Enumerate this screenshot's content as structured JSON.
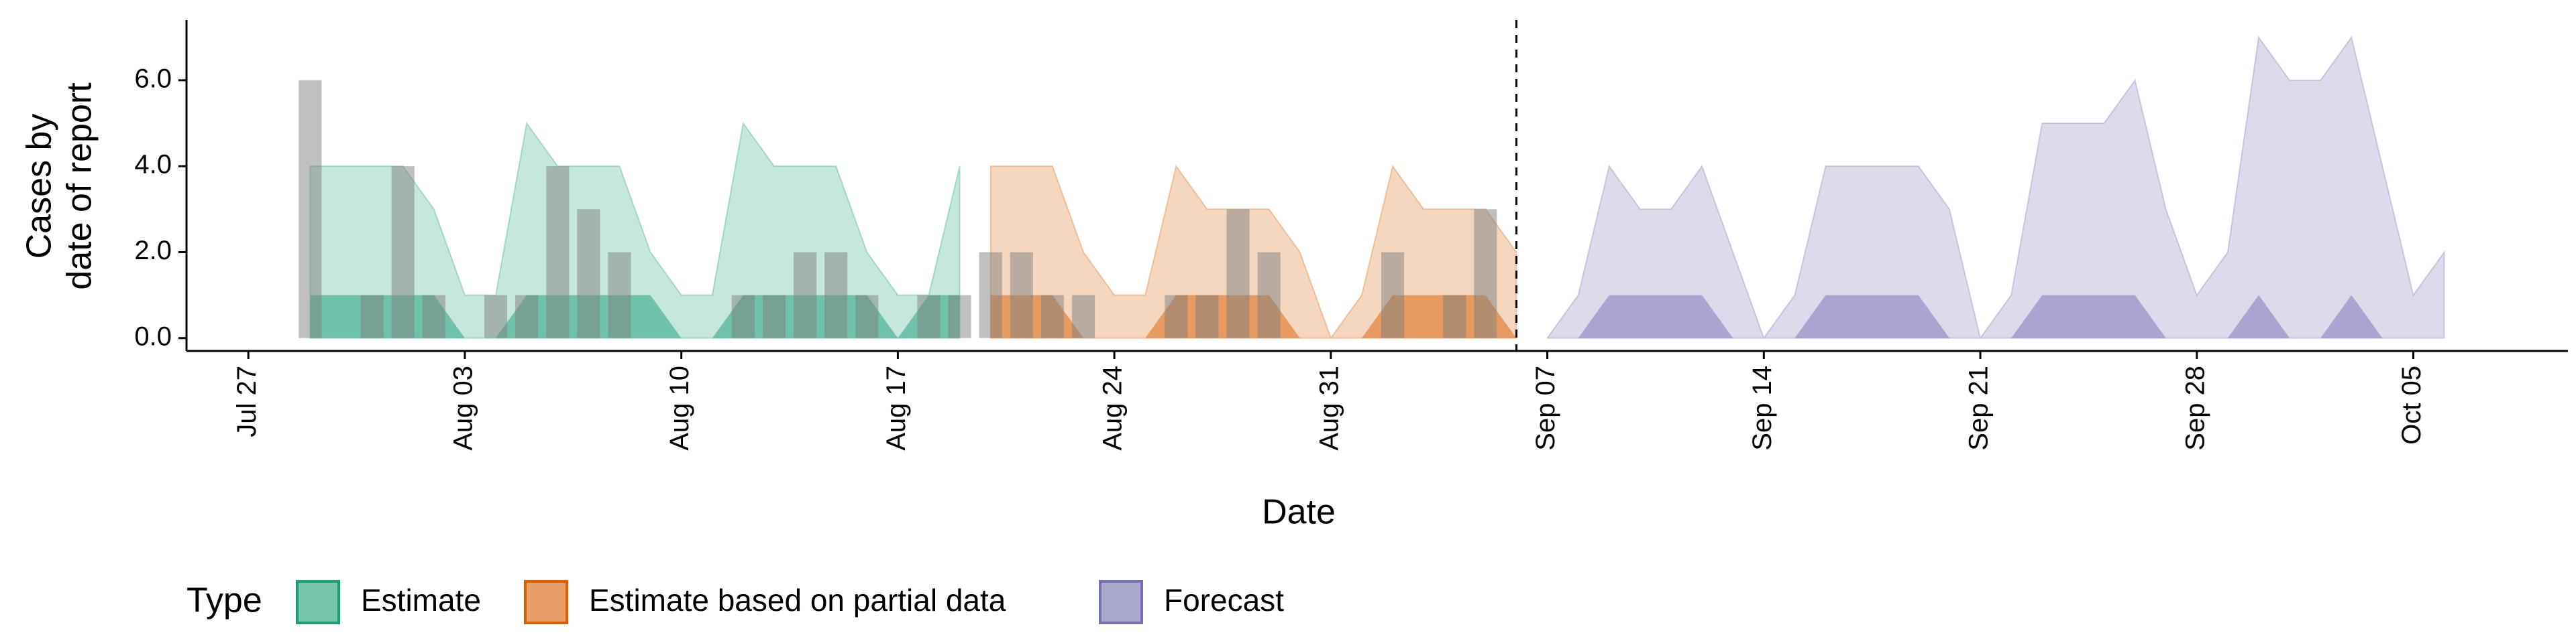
{
  "chart_data": {
    "type": "area",
    "xlabel": "Date",
    "ylabel": [
      "Cases by",
      "date of report"
    ],
    "legend_title": "Type",
    "xlim": [
      "Jul 25",
      "Oct 10"
    ],
    "xticks": [
      "Jul 27",
      "Aug 03",
      "Aug 10",
      "Aug 17",
      "Aug 24",
      "Aug 31",
      "Sep 07",
      "Sep 14",
      "Sep 21",
      "Sep 28",
      "Oct 05"
    ],
    "ylim": [
      -0.3,
      7.4
    ],
    "yticks": [
      {
        "value": 0,
        "label": "0.0"
      },
      {
        "value": 2,
        "label": "2.0"
      },
      {
        "value": 4,
        "label": "4.0"
      },
      {
        "value": 6,
        "label": "6.0"
      }
    ],
    "vline": "Sep 06",
    "x": [
      "Jul 29",
      "Jul 30",
      "Jul 31",
      "Aug 01",
      "Aug 02",
      "Aug 03",
      "Aug 04",
      "Aug 05",
      "Aug 06",
      "Aug 07",
      "Aug 08",
      "Aug 09",
      "Aug 10",
      "Aug 11",
      "Aug 12",
      "Aug 13",
      "Aug 14",
      "Aug 15",
      "Aug 16",
      "Aug 17",
      "Aug 18",
      "Aug 19",
      "Aug 20",
      "Aug 21",
      "Aug 22",
      "Aug 23",
      "Aug 24",
      "Aug 25",
      "Aug 26",
      "Aug 27",
      "Aug 28",
      "Aug 29",
      "Aug 30",
      "Aug 31",
      "Sep 01",
      "Sep 02",
      "Sep 03",
      "Sep 04",
      "Sep 05",
      "Sep 06",
      "Sep 07",
      "Sep 08",
      "Sep 09",
      "Sep 10",
      "Sep 11",
      "Sep 12",
      "Sep 13",
      "Sep 14",
      "Sep 15",
      "Sep 16",
      "Sep 17",
      "Sep 18",
      "Sep 19",
      "Sep 20",
      "Sep 21",
      "Sep 22",
      "Sep 23",
      "Sep 24",
      "Sep 25",
      "Sep 26",
      "Sep 27",
      "Sep 28",
      "Sep 29",
      "Sep 30",
      "Oct 01",
      "Oct 02",
      "Oct 03",
      "Oct 04",
      "Oct 05",
      "Oct 06"
    ],
    "bar_color": "#808080",
    "bars": [
      6,
      0,
      1,
      4,
      1,
      0,
      1,
      1,
      4,
      3,
      2,
      0,
      0,
      0,
      1,
      1,
      2,
      2,
      1,
      0,
      1,
      1,
      2,
      2,
      1,
      1,
      0,
      0,
      1,
      1,
      3,
      2,
      0,
      0,
      0,
      2,
      0,
      1,
      3,
      0,
      null,
      null,
      null,
      null,
      null,
      null,
      null,
      null,
      null,
      null,
      null,
      null,
      null,
      null,
      null,
      null,
      null,
      null,
      null,
      null,
      null,
      null,
      null,
      null,
      null,
      null,
      null,
      null,
      null,
      null
    ],
    "series": [
      {
        "name": "Estimate",
        "color": "#1b9e77",
        "values": [
          4,
          4,
          4,
          4,
          3,
          1,
          1,
          5,
          4,
          4,
          4,
          2,
          1,
          1,
          5,
          4,
          4,
          4,
          2,
          1,
          1,
          4,
          null,
          null,
          null,
          null,
          null,
          null,
          null,
          null,
          null,
          null,
          null,
          null,
          null,
          null,
          null,
          null,
          null,
          null,
          null,
          null,
          null,
          null,
          null,
          null,
          null,
          null,
          null,
          null,
          null,
          null,
          null,
          null,
          null,
          null,
          null,
          null,
          null,
          null,
          null,
          null,
          null,
          null,
          null,
          null,
          null,
          null,
          null,
          null
        ],
        "values_50": [
          1,
          1,
          1,
          1,
          1,
          0,
          0,
          1,
          1,
          1,
          1,
          1,
          0,
          0,
          1,
          1,
          1,
          1,
          1,
          0,
          1,
          1,
          null,
          null,
          null,
          null,
          null,
          null,
          null,
          null,
          null,
          null,
          null,
          null,
          null,
          null,
          null,
          null,
          null,
          null,
          null,
          null,
          null,
          null,
          null,
          null,
          null,
          null,
          null,
          null,
          null,
          null,
          null,
          null,
          null,
          null,
          null,
          null,
          null,
          null,
          null,
          null,
          null,
          null,
          null,
          null,
          null,
          null,
          null,
          null
        ]
      },
      {
        "name": "Estimate based on partial data",
        "color": "#d95f02",
        "values": [
          null,
          null,
          null,
          null,
          null,
          null,
          null,
          null,
          null,
          null,
          null,
          null,
          null,
          null,
          null,
          null,
          null,
          null,
          null,
          null,
          null,
          null,
          4,
          4,
          4,
          2,
          1,
          1,
          4,
          3,
          3,
          3,
          2,
          0,
          1,
          4,
          3,
          3,
          3,
          2,
          null,
          null,
          null,
          null,
          null,
          null,
          null,
          null,
          null,
          null,
          null,
          null,
          null,
          null,
          null,
          null,
          null,
          null,
          null,
          null,
          null,
          null,
          null,
          null,
          null,
          null,
          null,
          null,
          null,
          null
        ],
        "values_50": [
          null,
          null,
          null,
          null,
          null,
          null,
          null,
          null,
          null,
          null,
          null,
          null,
          null,
          null,
          null,
          null,
          null,
          null,
          null,
          null,
          null,
          null,
          1,
          1,
          1,
          0,
          0,
          0,
          1,
          1,
          1,
          1,
          0,
          0,
          0,
          1,
          1,
          1,
          1,
          0,
          null,
          null,
          null,
          null,
          null,
          null,
          null,
          null,
          null,
          null,
          null,
          null,
          null,
          null,
          null,
          null,
          null,
          null,
          null,
          null,
          null,
          null,
          null,
          null,
          null,
          null,
          null,
          null,
          null,
          null
        ]
      },
      {
        "name": "Forecast",
        "color": "#7570b3",
        "values": [
          null,
          null,
          null,
          null,
          null,
          null,
          null,
          null,
          null,
          null,
          null,
          null,
          null,
          null,
          null,
          null,
          null,
          null,
          null,
          null,
          null,
          null,
          null,
          null,
          null,
          null,
          null,
          null,
          null,
          null,
          null,
          null,
          null,
          null,
          null,
          null,
          null,
          null,
          null,
          null,
          0,
          1,
          4,
          3,
          3,
          4,
          2,
          0,
          1,
          4,
          4,
          4,
          4,
          3,
          0,
          1,
          5,
          5,
          5,
          6,
          3,
          1,
          2,
          7,
          6,
          6,
          7,
          4,
          1,
          2
        ],
        "values_50": [
          null,
          null,
          null,
          null,
          null,
          null,
          null,
          null,
          null,
          null,
          null,
          null,
          null,
          null,
          null,
          null,
          null,
          null,
          null,
          null,
          null,
          null,
          null,
          null,
          null,
          null,
          null,
          null,
          null,
          null,
          null,
          null,
          null,
          null,
          null,
          null,
          null,
          null,
          null,
          null,
          0,
          0,
          1,
          1,
          1,
          1,
          0,
          0,
          0,
          1,
          1,
          1,
          1,
          0,
          0,
          0,
          1,
          1,
          1,
          1,
          0,
          0,
          0,
          1,
          0,
          0,
          1,
          0,
          0,
          0
        ]
      }
    ]
  }
}
